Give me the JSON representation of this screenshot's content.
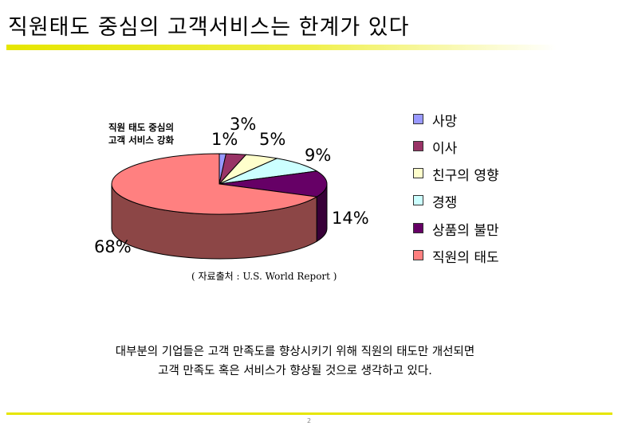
{
  "page": {
    "title": "직원태도 중심의 고객서비스는 한계가 있다",
    "source": "( 자료출처 : U.S. World Report )",
    "note_line1": "대부분의 기업들은 고객 만족도를 향상시키기 위해 직원의 태도만 개선되면",
    "note_line2": "고객 만족도 혹은 서비스가 향상될 것으로 생각하고 있다.",
    "page_number": "2"
  },
  "chart_data": {
    "type": "pie",
    "three_d": true,
    "subtitle_line1": "직원 태도 중심의",
    "subtitle_line2": "고객 서비스 강화",
    "legend_position": "right",
    "slices": [
      {
        "label": "사망",
        "value": 1,
        "value_label": "1%",
        "color": "#9999ff"
      },
      {
        "label": "이사",
        "value": 3,
        "value_label": "3%",
        "color": "#993366"
      },
      {
        "label": "친구의 영향",
        "value": 5,
        "value_label": "5%",
        "color": "#ffffcc"
      },
      {
        "label": "경쟁",
        "value": 9,
        "value_label": "9%",
        "color": "#ccffff"
      },
      {
        "label": "상품의 불만",
        "value": 14,
        "value_label": "14%",
        "color": "#660066"
      },
      {
        "label": "직원의 태도",
        "value": 68,
        "value_label": "68%",
        "color": "#ff8080"
      }
    ]
  }
}
